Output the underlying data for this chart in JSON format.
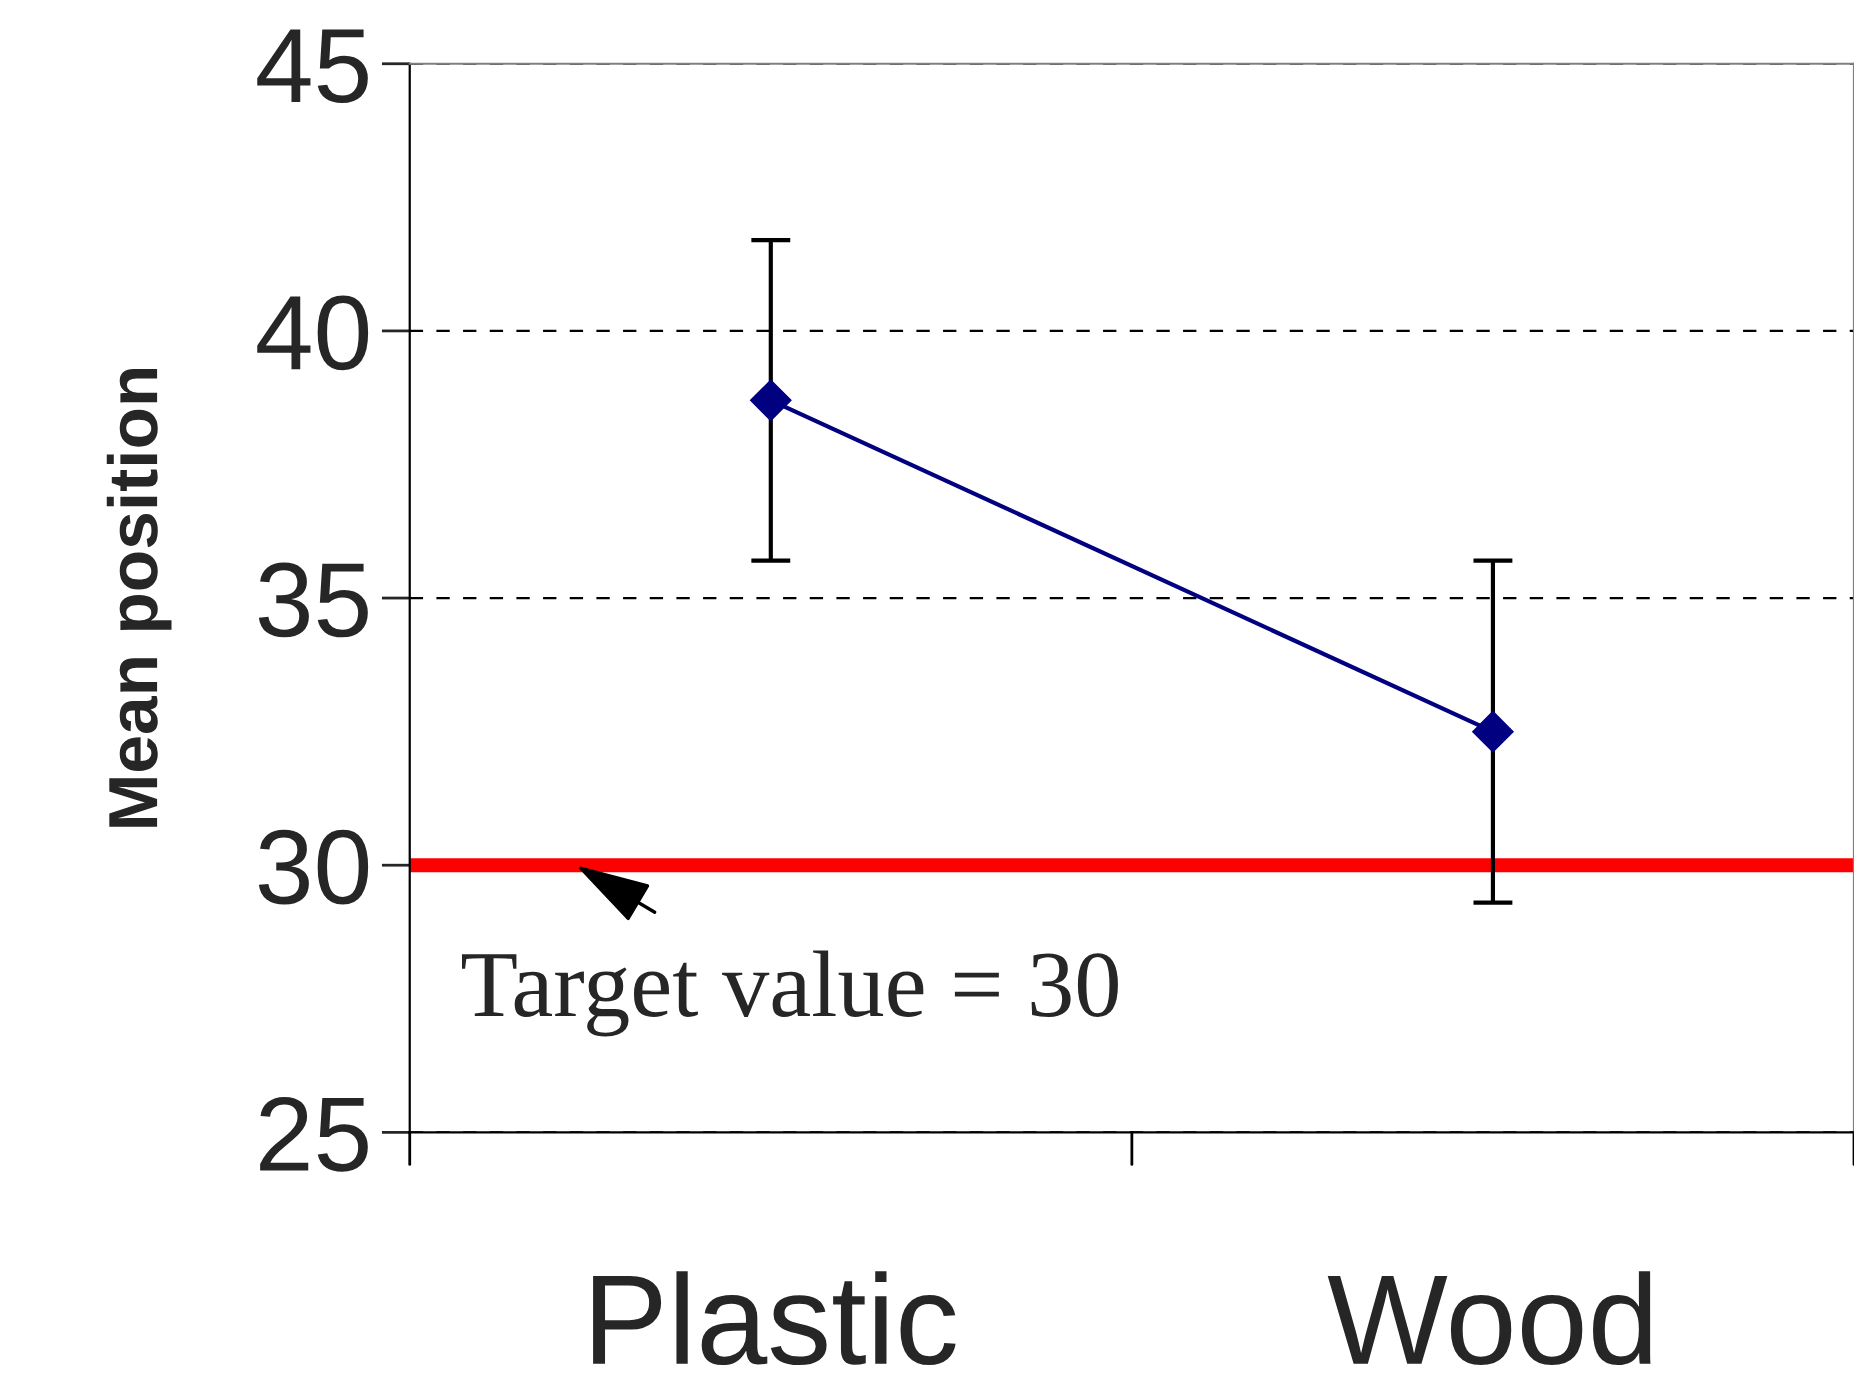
{
  "chart_data": {
    "type": "line",
    "ylabel": "Mean position",
    "categories": [
      "Plastic",
      "Wood"
    ],
    "series": [
      {
        "color": "#000080",
        "values": [
          38.7,
          32.5
        ],
        "errors": [
          3,
          3.2
        ]
      }
    ],
    "ylim": [
      25,
      45
    ],
    "yticks": [
      25,
      30,
      35,
      40,
      45
    ],
    "grid": "y",
    "marker": "diamond",
    "line_style": "solid",
    "ref_lines": [
      {
        "axis": "y",
        "value": 30,
        "label": "Target value = 30",
        "color": "#ff0000"
      }
    ]
  }
}
